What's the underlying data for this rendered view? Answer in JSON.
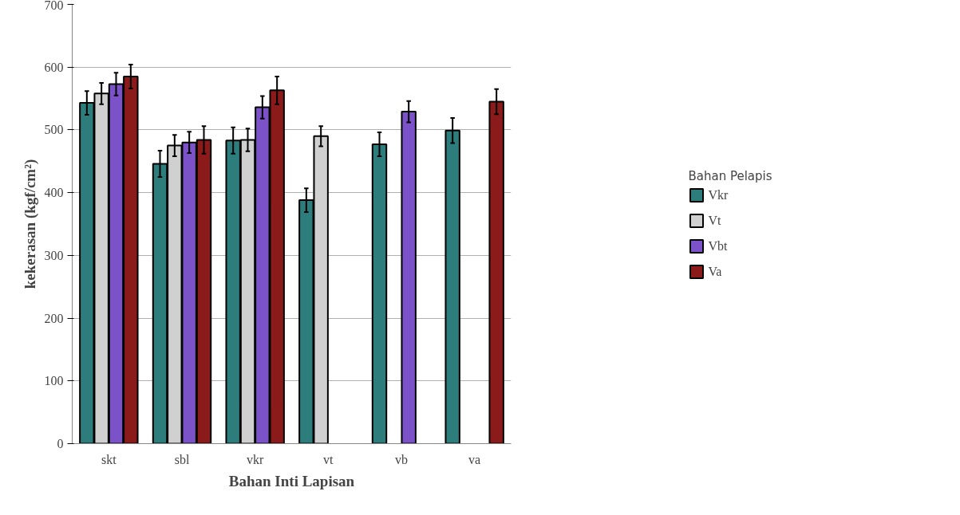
{
  "chart_data": {
    "type": "bar",
    "xlabel": "Bahan Inti Lapisan",
    "ylabel": "kekerasan (kgf/cm²)",
    "legend_title": "Bahan Pelapis",
    "categories": [
      "skt",
      "sbl",
      "vkr",
      "vt",
      "vb",
      "va"
    ],
    "series": [
      {
        "name": "Vkr",
        "color": "#2e7d7d",
        "values": [
          543,
          446,
          483,
          388,
          477,
          499
        ],
        "errors": [
          19,
          21,
          21,
          19,
          19,
          20
        ]
      },
      {
        "name": "Vt",
        "color": "#d0d0d0",
        "values": [
          558,
          475,
          484,
          490,
          null,
          null
        ],
        "errors": [
          17,
          17,
          18,
          16,
          null,
          null
        ]
      },
      {
        "name": "Vbt",
        "color": "#7b52c8",
        "values": [
          573,
          480,
          536,
          null,
          529,
          null
        ],
        "errors": [
          18,
          17,
          18,
          null,
          17,
          null
        ]
      },
      {
        "name": "Va",
        "color": "#8b1a1a",
        "values": [
          585,
          484,
          563,
          null,
          null,
          545
        ],
        "errors": [
          19,
          22,
          22,
          null,
          null,
          20
        ]
      }
    ],
    "ylim": [
      0,
      700
    ],
    "yticks": [
      0,
      100,
      200,
      300,
      400,
      500,
      600,
      700
    ],
    "grid": "y",
    "legend": "right"
  }
}
